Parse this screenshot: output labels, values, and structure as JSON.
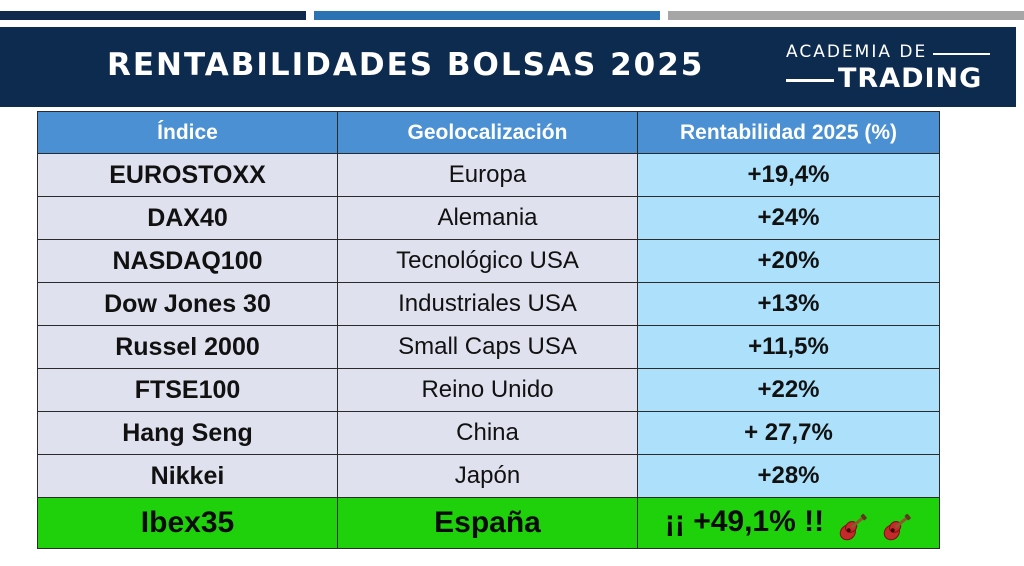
{
  "header": {
    "title": "RENTABILIDADES BOLSAS 2025",
    "logo_top": "ACADEMIA DE",
    "logo_bottom": "TRADING"
  },
  "table": {
    "columns": [
      "Índice",
      "Geolocalización",
      "Rentabilidad 2025 (%)"
    ],
    "rows": [
      {
        "index": "EUROSTOXX",
        "geo": "Europa",
        "return": "+19,4%"
      },
      {
        "index": "DAX40",
        "geo": "Alemania",
        "return": "+24%"
      },
      {
        "index": "NASDAQ100",
        "geo": "Tecnológico USA",
        "return": "+20%"
      },
      {
        "index": "Dow Jones 30",
        "geo": "Industriales USA",
        "return": "+13%"
      },
      {
        "index": "Russel 2000",
        "geo": "Small Caps USA",
        "return": "+11,5%"
      },
      {
        "index": "FTSE100",
        "geo": "Reino Unido",
        "return": "+22%"
      },
      {
        "index": "Hang Seng",
        "geo": "China",
        "return": "+ 27,7%"
      },
      {
        "index": "Nikkei",
        "geo": "Japón",
        "return": "+28%"
      }
    ],
    "highlight": {
      "index": "Ibex35",
      "geo": "España",
      "return": "¡¡ +49,1% !!",
      "icons": [
        "guitar-icon",
        "guitar-icon"
      ]
    }
  },
  "colors": {
    "banner": "#0d2a4f",
    "header_row": "#4a90d2",
    "cell_grey": "#dfe2ee",
    "cell_blue": "#ace0fb",
    "highlight": "#1ed10a"
  }
}
